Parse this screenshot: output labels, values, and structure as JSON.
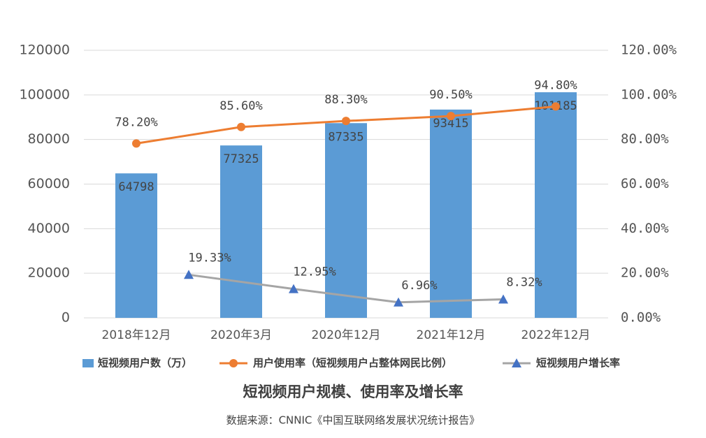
{
  "chart_data": {
    "type": "bar",
    "title": "短视频用户规模、使用率及增长率",
    "source": "数据来源：CNNIC《中国互联网络发展状况统计报告》",
    "categories": [
      "2018年12月",
      "2020年3月",
      "2020年12月",
      "2021年12月",
      "2022年12月"
    ],
    "series": [
      {
        "name": "短视频用户数（万）",
        "color": "#5b9bd5",
        "values": [
          64798,
          77325,
          87335,
          93415,
          101185
        ]
      },
      {
        "name": "用户使用率（短视频用户占整体网民比例）",
        "color": "#ed7d31",
        "axis": "y2",
        "values": [
          78.2,
          85.6,
          88.3,
          90.5,
          94.8
        ],
        "value_labels": [
          "78.20%",
          "85.60%",
          "88.30%",
          "90.50%",
          "94.80%"
        ]
      },
      {
        "name": "短视频用户增长率",
        "color": "#a5a5a5",
        "marker_color": "#4472c4",
        "axis": "y2",
        "values": [
          null,
          19.33,
          12.95,
          6.96,
          8.32
        ],
        "value_labels": [
          null,
          "19.33%",
          "12.95%",
          "6.96%",
          "8.32%"
        ]
      }
    ],
    "ylim": [
      0,
      120000
    ],
    "yticks": [
      0,
      20000,
      40000,
      60000,
      80000,
      100000,
      120000
    ],
    "y2lim": [
      0,
      120
    ],
    "y2ticks": [
      {
        "value": 0,
        "label": "0.00%"
      },
      {
        "value": 20,
        "label": "20.00%"
      },
      {
        "value": 40,
        "label": "40.00%"
      },
      {
        "value": 60,
        "label": "60.00%"
      },
      {
        "value": 80,
        "label": "80.00%"
      },
      {
        "value": 100,
        "label": "100.00%"
      },
      {
        "value": 120,
        "label": "120.00%"
      }
    ],
    "grid": true,
    "legend": "bottom"
  }
}
